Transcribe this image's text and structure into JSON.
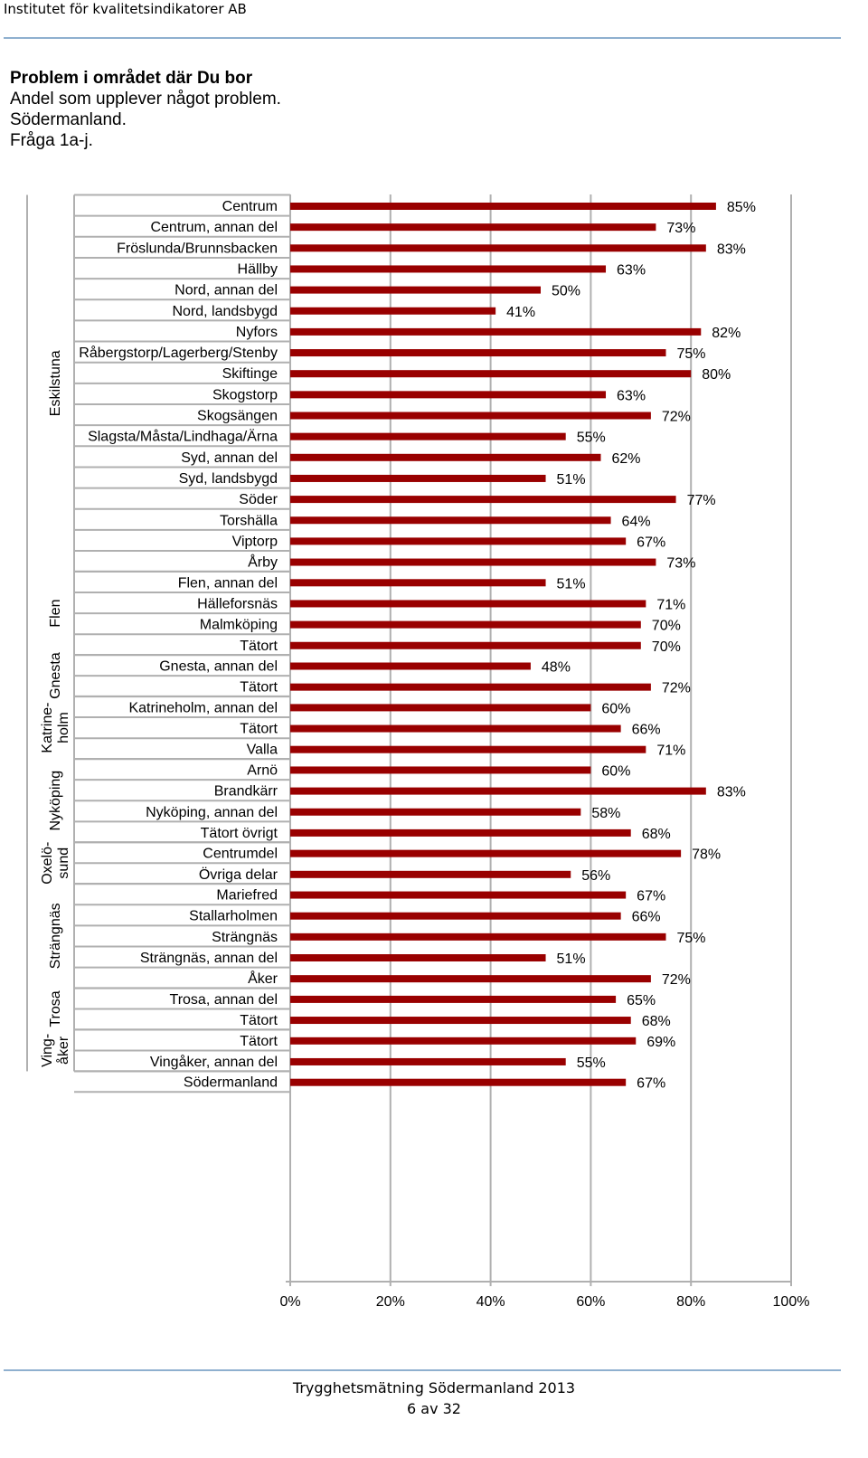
{
  "header": {
    "organization": "Institutet för kvalitetsindikatorer AB"
  },
  "title": {
    "line1": "Problem i området där Du bor",
    "line2": "Andel som upplever något problem.",
    "line3": "Södermanland.",
    "line4": "Fråga 1a-j."
  },
  "footer": {
    "report": "Trygghetsmätning Södermanland 2013",
    "page": "6 av 32"
  },
  "colors": {
    "bar": "#990000",
    "grid": "#b0b0b0"
  },
  "chart_data": {
    "type": "bar",
    "orientation": "horizontal",
    "xlim": [
      0,
      100
    ],
    "x_ticks": [
      "0%",
      "20%",
      "40%",
      "60%",
      "80%",
      "100%"
    ],
    "groups": [
      {
        "name": "Eskilstuna",
        "items": [
          {
            "label": "Centrum",
            "value": 85
          },
          {
            "label": "Centrum, annan del",
            "value": 73
          },
          {
            "label": "Fröslunda/Brunnsbacken",
            "value": 83
          },
          {
            "label": "Hällby",
            "value": 63
          },
          {
            "label": "Nord, annan del",
            "value": 50
          },
          {
            "label": "Nord, landsbygd",
            "value": 41
          },
          {
            "label": "Nyfors",
            "value": 82
          },
          {
            "label": "Råbergstorp/Lagerberg/Stenby",
            "value": 75
          },
          {
            "label": "Skiftinge",
            "value": 80
          },
          {
            "label": "Skogstorp",
            "value": 63
          },
          {
            "label": "Skogsängen",
            "value": 72
          },
          {
            "label": "Slagsta/Måsta/Lindhaga/Ärna",
            "value": 55
          },
          {
            "label": "Syd, annan del",
            "value": 62
          },
          {
            "label": "Syd, landsbygd",
            "value": 51
          },
          {
            "label": "Söder",
            "value": 77
          },
          {
            "label": "Torshälla",
            "value": 64
          },
          {
            "label": "Viptorp",
            "value": 67
          },
          {
            "label": "Årby",
            "value": 73
          }
        ]
      },
      {
        "name": "Flen",
        "items": [
          {
            "label": "Flen, annan del",
            "value": 51
          },
          {
            "label": "Hälleforsnäs",
            "value": 71
          },
          {
            "label": "Malmköping",
            "value": 70
          },
          {
            "label": "Tätort",
            "value": 70
          }
        ]
      },
      {
        "name": "Gnesta",
        "items": [
          {
            "label": "Gnesta, annan del",
            "value": 48
          },
          {
            "label": "Tätort",
            "value": 72
          }
        ]
      },
      {
        "name": "Katrine-holm",
        "name_lines": [
          "Katrine-",
          "holm"
        ],
        "items": [
          {
            "label": "Katrineholm, annan del",
            "value": 60
          },
          {
            "label": "Tätort",
            "value": 66
          },
          {
            "label": "Valla",
            "value": 71
          }
        ]
      },
      {
        "name": "Nyköping",
        "items": [
          {
            "label": "Arnö",
            "value": 60
          },
          {
            "label": "Brandkärr",
            "value": 83
          },
          {
            "label": "Nyköping, annan del",
            "value": 58
          },
          {
            "label": "Tätort övrigt",
            "value": 68
          }
        ]
      },
      {
        "name": "Oxelö-sund",
        "name_lines": [
          "Oxelö-",
          "sund"
        ],
        "items": [
          {
            "label": "Centrumdel",
            "value": 78
          },
          {
            "label": "Övriga delar",
            "value": 56
          }
        ]
      },
      {
        "name": "Strängnäs",
        "items": [
          {
            "label": "Mariefred",
            "value": 67
          },
          {
            "label": "Stallarholmen",
            "value": 66
          },
          {
            "label": "Strängnäs",
            "value": 75
          },
          {
            "label": "Strängnäs, annan del",
            "value": 51
          },
          {
            "label": "Åker",
            "value": 72
          }
        ]
      },
      {
        "name": "Trosa",
        "items": [
          {
            "label": "Trosa, annan del",
            "value": 65
          },
          {
            "label": "Tätort",
            "value": 68
          }
        ]
      },
      {
        "name": "Ving-åker",
        "name_lines": [
          "Ving-",
          "åker"
        ],
        "items": [
          {
            "label": "Tätort",
            "value": 69
          },
          {
            "label": "Vingåker, annan del",
            "value": 55
          }
        ]
      },
      {
        "name": "",
        "items": [
          {
            "label": "Södermanland",
            "value": 67
          }
        ]
      }
    ]
  }
}
